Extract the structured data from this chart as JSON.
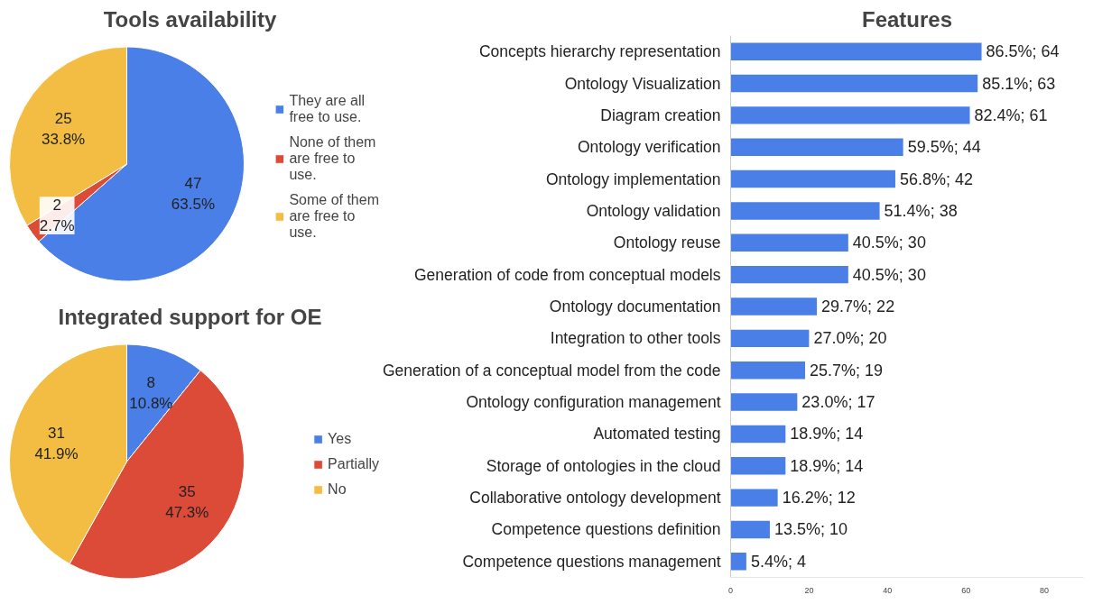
{
  "chart_data": [
    {
      "type": "pie",
      "title": "Tools availability",
      "categories": [
        "They are all free to use.",
        "None of them are free to use.",
        "Some of them are free to use."
      ],
      "values": [
        47,
        2,
        25
      ],
      "colors": [
        "#4a7fe8",
        "#dc4a38",
        "#f2bd42"
      ],
      "value_labels": [
        "47\n63.5%",
        "2\n2.7%",
        "25\n33.8%"
      ],
      "legend": "right"
    },
    {
      "type": "pie",
      "title": "Integrated support for OE",
      "categories": [
        "Yes",
        "Partially",
        "No"
      ],
      "values": [
        8,
        35,
        31
      ],
      "colors": [
        "#4a7fe8",
        "#dc4a38",
        "#f2bd42"
      ],
      "value_labels": [
        "8\n10.8%",
        "35\n47.3%",
        "31\n41.9%"
      ],
      "legend": "right"
    },
    {
      "type": "bar",
      "orientation": "horizontal",
      "title": "Features",
      "categories": [
        "Concepts hierarchy representation",
        "Ontology Visualization",
        "Diagram creation",
        "Ontology verification",
        "Ontology implementation",
        "Ontology validation",
        "Ontology reuse",
        "Generation of code from conceptual models",
        "Ontology documentation",
        "Integration to other tools",
        "Generation of a conceptual model from the code",
        "Ontology configuration management",
        "Automated testing",
        "Storage of ontologies in the cloud",
        "Collaborative ontology development",
        "Competence questions definition",
        "Competence questions management"
      ],
      "values": [
        64,
        63,
        61,
        44,
        42,
        38,
        30,
        30,
        22,
        20,
        19,
        17,
        14,
        14,
        12,
        10,
        4
      ],
      "value_labels": [
        "86.5%; 64",
        "85.1%; 63",
        "82.4%; 61",
        "59.5%; 44",
        "56.8%; 42",
        "51.4%; 38",
        "40.5%; 30",
        "40.5%; 30",
        "29.7%; 22",
        "27.0%; 20",
        "25.7%; 19",
        "23.0%; 17",
        "18.9%; 14",
        "18.9%; 14",
        "16.2%; 12",
        "13.5%; 10",
        "5.4%; 4"
      ],
      "color": "#4a7fe8",
      "xlim": [
        0,
        90
      ],
      "xticks": [
        0,
        20,
        40,
        60,
        80
      ],
      "grid": false
    }
  ]
}
